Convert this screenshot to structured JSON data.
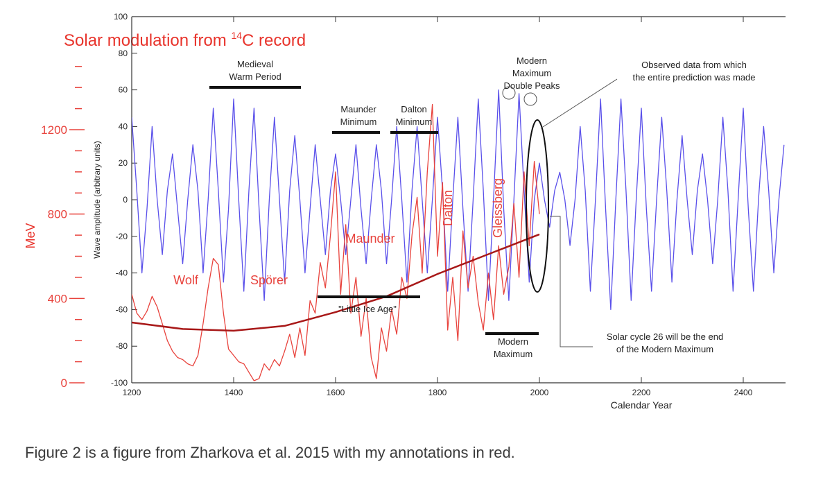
{
  "chart_data": {
    "type": "line",
    "title_parts": [
      "Solar mo",
      "dulation from ",
      "14",
      "C record"
    ],
    "xlabel": "Calendar Year",
    "ylabel": "Wave amplitude (arbitrary units)",
    "y2label": "MeV",
    "xlim": [
      1200,
      2483
    ],
    "xticks": [
      1200,
      1400,
      1600,
      1800,
      2000,
      2200,
      2400
    ],
    "ylim": [
      -100,
      100
    ],
    "yticks": [
      -100,
      -80,
      -60,
      -40,
      -20,
      0,
      20,
      40,
      60,
      80,
      100
    ],
    "y2lim": [
      0,
      1736
    ],
    "y2ticks": [
      0,
      400,
      800,
      1200
    ],
    "y2minorticks": [
      100,
      200,
      300,
      500,
      600,
      700,
      900,
      1000,
      1100,
      1300,
      1400,
      1500
    ],
    "series": [
      {
        "color": "#5a50ea",
        "x": [
          1200,
          1210,
          1220,
          1230,
          1240,
          1250,
          1260,
          1270,
          1280,
          1290,
          1300,
          1310,
          1320,
          1330,
          1340,
          1350,
          1360,
          1370,
          1380,
          1390,
          1400,
          1410,
          1420,
          1430,
          1440,
          1450,
          1460,
          1470,
          1480,
          1490,
          1500,
          1510,
          1520,
          1530,
          1540,
          1550,
          1560,
          1570,
          1580,
          1590,
          1600,
          1610,
          1620,
          1630,
          1640,
          1650,
          1660,
          1670,
          1680,
          1690,
          1700,
          1710,
          1720,
          1730,
          1740,
          1750,
          1760,
          1770,
          1780,
          1790,
          1800,
          1810,
          1820,
          1830,
          1840,
          1850,
          1860,
          1870,
          1880,
          1890,
          1900,
          1910,
          1920,
          1930,
          1940,
          1950,
          1960,
          1970,
          1980,
          1990,
          2000,
          2010,
          2020,
          2030,
          2040,
          2050,
          2060,
          2070,
          2080,
          2090,
          2100,
          2110,
          2120,
          2130,
          2140,
          2150,
          2160,
          2170,
          2180,
          2190,
          2200,
          2210,
          2220,
          2230,
          2240,
          2250,
          2260,
          2270,
          2280,
          2290,
          2300,
          2310,
          2320,
          2330,
          2340,
          2350,
          2360,
          2370,
          2380,
          2390,
          2400,
          2410,
          2420,
          2430,
          2440,
          2450,
          2460,
          2470,
          2480
        ],
        "values": [
          45,
          5,
          -40,
          -5,
          40,
          0,
          -30,
          5,
          25,
          -5,
          -35,
          0,
          30,
          5,
          -40,
          0,
          50,
          5,
          -45,
          -5,
          55,
          0,
          -50,
          5,
          50,
          -5,
          -55,
          0,
          45,
          0,
          -45,
          5,
          35,
          0,
          -40,
          -5,
          30,
          0,
          -30,
          5,
          25,
          0,
          -30,
          0,
          30,
          -5,
          -35,
          0,
          30,
          5,
          -35,
          0,
          40,
          0,
          -45,
          5,
          40,
          0,
          -40,
          0,
          45,
          5,
          -50,
          0,
          45,
          -5,
          -50,
          0,
          55,
          5,
          -55,
          0,
          60,
          -5,
          -55,
          0,
          58,
          5,
          -45,
          0,
          20,
          0,
          -15,
          5,
          15,
          0,
          -25,
          0,
          40,
          5,
          -50,
          0,
          55,
          -5,
          -60,
          0,
          55,
          5,
          -55,
          0,
          50,
          -5,
          -50,
          0,
          45,
          5,
          -45,
          0,
          35,
          0,
          -30,
          5,
          25,
          0,
          -35,
          0,
          45,
          5,
          -50,
          0,
          50,
          -5,
          -50,
          0,
          40,
          5,
          -40,
          0,
          30
        ]
      },
      {
        "color": "#e8433d",
        "axis": "y2",
        "x": [
          1200,
          1210,
          1220,
          1230,
          1240,
          1250,
          1260,
          1270,
          1280,
          1290,
          1300,
          1310,
          1320,
          1330,
          1340,
          1350,
          1360,
          1370,
          1380,
          1390,
          1400,
          1410,
          1420,
          1430,
          1440,
          1450,
          1460,
          1470,
          1480,
          1490,
          1500,
          1510,
          1520,
          1530,
          1540,
          1550,
          1560,
          1570,
          1580,
          1590,
          1600,
          1610,
          1620,
          1630,
          1640,
          1650,
          1660,
          1670,
          1680,
          1690,
          1700,
          1710,
          1720,
          1730,
          1740,
          1750,
          1760,
          1770,
          1780,
          1790,
          1800,
          1810,
          1820,
          1830,
          1840,
          1850,
          1860,
          1870,
          1880,
          1890,
          1900,
          1910,
          1920,
          1930,
          1940,
          1950,
          1960,
          1970,
          1980,
          1990,
          2000
        ],
        "values": [
          420,
          330,
          300,
          340,
          410,
          360,
          280,
          200,
          150,
          120,
          110,
          90,
          80,
          130,
          280,
          450,
          590,
          560,
          330,
          160,
          130,
          100,
          90,
          50,
          10,
          20,
          90,
          60,
          110,
          80,
          150,
          230,
          120,
          260,
          130,
          390,
          330,
          570,
          450,
          700,
          1000,
          420,
          750,
          330,
          500,
          220,
          400,
          120,
          20,
          260,
          150,
          350,
          230,
          500,
          400,
          700,
          880,
          520,
          1000,
          1320,
          600,
          950,
          250,
          500,
          200,
          720,
          450,
          600,
          380,
          250,
          520,
          300,
          650,
          420,
          550,
          850,
          500,
          1000,
          650,
          1050,
          800
        ]
      },
      {
        "color": "#a81818",
        "axis": "y2",
        "x": [
          1200,
          1300,
          1400,
          1500,
          1600,
          1700,
          1800,
          1900,
          2000
        ],
        "values": [
          286,
          255,
          247,
          270,
          335,
          410,
          516,
          610,
          704
        ]
      }
    ],
    "annotations": [
      {
        "lines": [
          "Medieval",
          "Warm Period"
        ]
      },
      {
        "lines": [
          "Maunder",
          "Minimum"
        ]
      },
      {
        "lines": [
          "Dalton",
          "Minimum"
        ]
      },
      {
        "lines": [
          "Modern",
          "Maximum",
          "Double Peaks"
        ]
      },
      {
        "lines": [
          "Observed data from which",
          "the entire prediction was made"
        ]
      },
      {
        "lines": [
          "\"Little Ice Age\""
        ]
      },
      {
        "lines": [
          "Modern",
          "Maximum"
        ]
      },
      {
        "lines": [
          "Solar cycle 26 will be the end",
          "of the Modern Maximum"
        ]
      }
    ],
    "red_annotations": [
      "Wolf",
      "Spörer",
      "Maunder",
      "Dalton",
      "Gleissberg"
    ]
  },
  "caption": "Figure 2 is a figure from Zharkova et al. 2015 with my annotations in red."
}
